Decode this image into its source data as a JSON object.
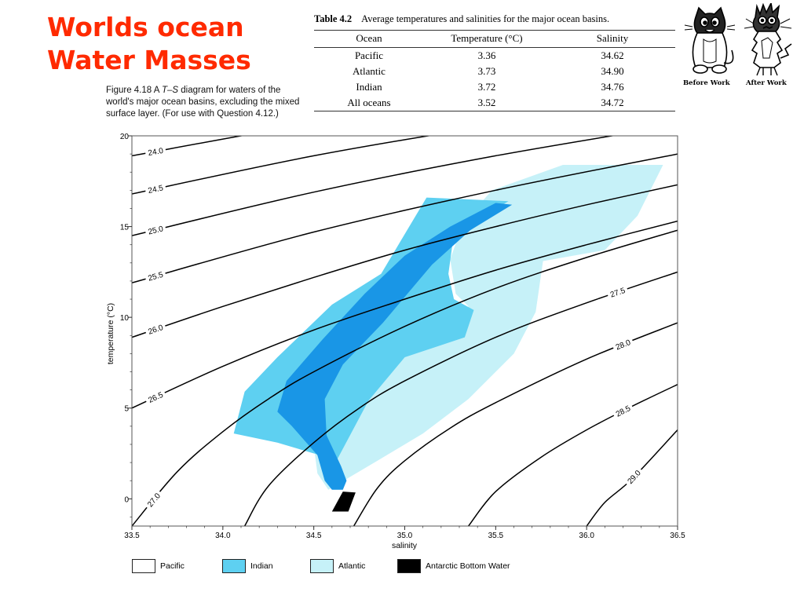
{
  "slide": {
    "title_line1": "Worlds ocean",
    "title_line2": "Water Masses"
  },
  "figure": {
    "caption_prefix": "Figure 4.18   A ",
    "caption_italic": "T–S",
    "caption_suffix": " diagram for waters of the world's major ocean basins, excluding the mixed surface layer. (For use with Question 4.12.)"
  },
  "table": {
    "label": "Table 4.2",
    "caption": "Average temperatures and salinities for the major ocean basins.",
    "headers": [
      "Ocean",
      "Temperature (°C)",
      "Salinity"
    ],
    "rows": [
      [
        "Pacific",
        "3.36",
        "34.62"
      ],
      [
        "Atlantic",
        "3.73",
        "34.90"
      ],
      [
        "Indian",
        "3.72",
        "34.76"
      ],
      [
        "All oceans",
        "3.52",
        "34.72"
      ]
    ]
  },
  "cartoon": {
    "left_caption": "Before Work",
    "right_caption": "After Work"
  },
  "colors": {
    "title": "#ff2a00",
    "atlantic": "#c6f1f8",
    "indian": "#5ed0f1",
    "pacific": "#1996e6",
    "antarctic": "#000000",
    "isopycnal": "#000000"
  },
  "chart_data": {
    "type": "area",
    "xlabel": "salinity",
    "ylabel": "temperature (°C)",
    "xlim": [
      33.5,
      36.5
    ],
    "ylim": [
      -1.5,
      20
    ],
    "xticks": [
      "33.5",
      "34.0",
      "34.5",
      "35.0",
      "35.5",
      "36.0",
      "36.5"
    ],
    "yticks": [
      "0",
      "5",
      "10",
      "15",
      "20"
    ],
    "grid": false,
    "isopycnal_labels": [
      "24.0",
      "24.5",
      "25.0",
      "25.5",
      "26.0",
      "26.5",
      "27.0",
      "27.5",
      "28.0",
      "28.5",
      "29.0"
    ],
    "isopycnals": [
      {
        "label": "24.0",
        "points": [
          [
            33.5,
            18.9
          ],
          [
            34.5,
            20.7
          ],
          [
            35.5,
            22.2
          ],
          [
            36.5,
            23.6
          ]
        ]
      },
      {
        "label": "24.5",
        "points": [
          [
            33.5,
            16.8
          ],
          [
            34.5,
            18.9
          ],
          [
            35.5,
            20.6
          ],
          [
            36.5,
            22.1
          ]
        ]
      },
      {
        "label": "25.0",
        "points": [
          [
            33.5,
            14.5
          ],
          [
            34.5,
            16.9
          ],
          [
            35.5,
            18.9
          ],
          [
            36.5,
            20.6
          ]
        ]
      },
      {
        "label": "25.5",
        "points": [
          [
            33.5,
            11.9
          ],
          [
            34.5,
            14.7
          ],
          [
            35.5,
            17.0
          ],
          [
            36.5,
            19.0
          ]
        ]
      },
      {
        "label": "26.0",
        "points": [
          [
            33.5,
            8.9
          ],
          [
            34.0,
            10.6
          ],
          [
            34.5,
            12.2
          ],
          [
            35.0,
            13.7
          ],
          [
            35.5,
            15.0
          ],
          [
            36.0,
            16.2
          ],
          [
            36.5,
            17.3
          ]
        ]
      },
      {
        "label": "26.5",
        "points": [
          [
            33.5,
            5.0
          ],
          [
            34.0,
            7.3
          ],
          [
            34.5,
            9.3
          ],
          [
            35.0,
            11.0
          ],
          [
            35.5,
            12.6
          ],
          [
            36.0,
            14.0
          ],
          [
            36.5,
            15.3
          ]
        ]
      },
      {
        "label": "27.0",
        "points": [
          [
            33.5,
            -1.5
          ],
          [
            33.75,
            1.5
          ],
          [
            34.0,
            3.7
          ],
          [
            34.25,
            5.5
          ],
          [
            34.5,
            7.0
          ],
          [
            35.0,
            9.5
          ],
          [
            35.5,
            11.6
          ],
          [
            36.0,
            13.3
          ],
          [
            36.5,
            14.8
          ]
        ]
      },
      {
        "label": "27.5",
        "points": [
          [
            34.12,
            -1.5
          ],
          [
            34.25,
            0.7
          ],
          [
            34.5,
            3.1
          ],
          [
            34.75,
            5.0
          ],
          [
            35.0,
            6.5
          ],
          [
            35.5,
            8.9
          ],
          [
            36.0,
            10.8
          ],
          [
            36.5,
            12.5
          ]
        ]
      },
      {
        "label": "28.0",
        "points": [
          [
            34.72,
            -1.5
          ],
          [
            34.85,
            0.6
          ],
          [
            35.0,
            2.1
          ],
          [
            35.25,
            3.9
          ],
          [
            35.5,
            5.3
          ],
          [
            36.0,
            7.7
          ],
          [
            36.5,
            9.7
          ]
        ]
      },
      {
        "label": "28.5",
        "points": [
          [
            35.35,
            -1.5
          ],
          [
            35.5,
            0.4
          ],
          [
            35.75,
            2.3
          ],
          [
            36.0,
            3.8
          ],
          [
            36.25,
            5.1
          ],
          [
            36.5,
            6.3
          ]
        ]
      },
      {
        "label": "29.0",
        "points": [
          [
            36.0,
            -1.5
          ],
          [
            36.1,
            -0.2
          ],
          [
            36.25,
            1.1
          ],
          [
            36.5,
            3.8
          ]
        ]
      }
    ],
    "series": [
      {
        "name": "Atlantic",
        "polygon": [
          [
            34.58,
            0.5
          ],
          [
            34.85,
            2.1
          ],
          [
            35.1,
            3.6
          ],
          [
            35.35,
            5.5
          ],
          [
            35.6,
            8.0
          ],
          [
            35.72,
            10.3
          ],
          [
            35.76,
            13.1
          ],
          [
            36.1,
            13.7
          ],
          [
            36.28,
            15.6
          ],
          [
            36.42,
            18.4
          ],
          [
            35.87,
            18.4
          ],
          [
            35.48,
            17.0
          ],
          [
            35.32,
            15.2
          ],
          [
            35.25,
            13.2
          ],
          [
            35.28,
            11.3
          ],
          [
            35.35,
            10.6
          ],
          [
            35.3,
            9.7
          ],
          [
            34.9,
            8.3
          ],
          [
            34.77,
            7.0
          ],
          [
            34.62,
            4.8
          ],
          [
            34.5,
            2.9
          ],
          [
            34.52,
            1.4
          ]
        ]
      },
      {
        "name": "Indian",
        "polygon": [
          [
            34.63,
            2.2
          ],
          [
            34.8,
            5.4
          ],
          [
            35.0,
            7.8
          ],
          [
            35.33,
            8.9
          ],
          [
            35.38,
            10.4
          ],
          [
            35.27,
            11.0
          ],
          [
            35.24,
            12.4
          ],
          [
            35.27,
            14.6
          ],
          [
            35.57,
            16.4
          ],
          [
            35.12,
            16.6
          ],
          [
            34.87,
            12.4
          ],
          [
            34.6,
            10.7
          ],
          [
            34.3,
            7.8
          ],
          [
            34.12,
            5.9
          ],
          [
            34.06,
            3.6
          ],
          [
            34.3,
            3.1
          ],
          [
            34.5,
            2.5
          ]
        ]
      },
      {
        "name": "Pacific",
        "polygon": [
          [
            34.6,
            0.5
          ],
          [
            34.66,
            0.5
          ],
          [
            34.68,
            1.0
          ],
          [
            34.65,
            1.8
          ],
          [
            34.57,
            3.5
          ],
          [
            34.56,
            5.5
          ],
          [
            34.66,
            7.4
          ],
          [
            34.88,
            9.7
          ],
          [
            35.15,
            12.9
          ],
          [
            35.36,
            14.8
          ],
          [
            35.59,
            16.2
          ],
          [
            35.5,
            16.3
          ],
          [
            35.25,
            15.0
          ],
          [
            35.0,
            13.4
          ],
          [
            34.78,
            11.3
          ],
          [
            34.55,
            8.8
          ],
          [
            34.35,
            6.5
          ],
          [
            34.3,
            4.8
          ],
          [
            34.38,
            4.0
          ],
          [
            34.52,
            2.4
          ],
          [
            34.56,
            1.0
          ]
        ]
      },
      {
        "name": "Antarctic Bottom Water",
        "polygon": [
          [
            34.66,
            0.4
          ],
          [
            34.73,
            0.35
          ],
          [
            34.69,
            -0.7
          ],
          [
            34.6,
            -0.7
          ]
        ]
      }
    ],
    "legend": [
      "Pacific",
      "Indian",
      "Atlantic",
      "Antarctic Bottom Water"
    ],
    "legend_placement": "bottom"
  }
}
